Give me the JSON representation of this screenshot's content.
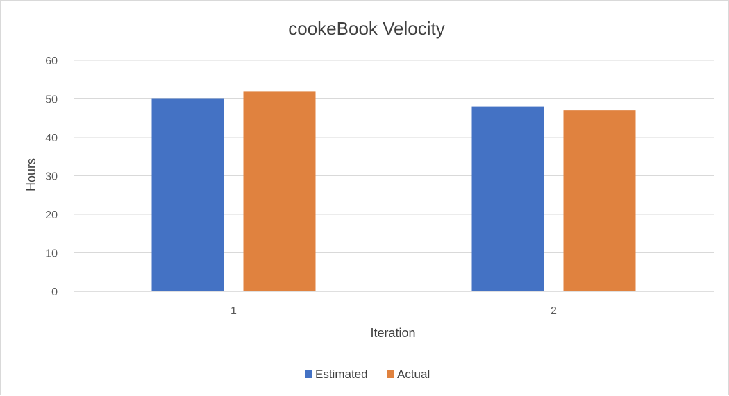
{
  "chart_data": {
    "type": "bar",
    "title": "cookeBook Velocity",
    "xlabel": "Iteration",
    "ylabel": "Hours",
    "categories": [
      "1",
      "2"
    ],
    "series": [
      {
        "name": "Estimated",
        "color": "#4472C4",
        "values": [
          50,
          48
        ]
      },
      {
        "name": "Actual",
        "color": "#E0823F",
        "values": [
          52,
          47
        ]
      }
    ],
    "ylim": [
      0,
      60
    ],
    "yticks": [
      0,
      10,
      20,
      30,
      40,
      50,
      60
    ],
    "grid": true,
    "legend": "bottom"
  }
}
